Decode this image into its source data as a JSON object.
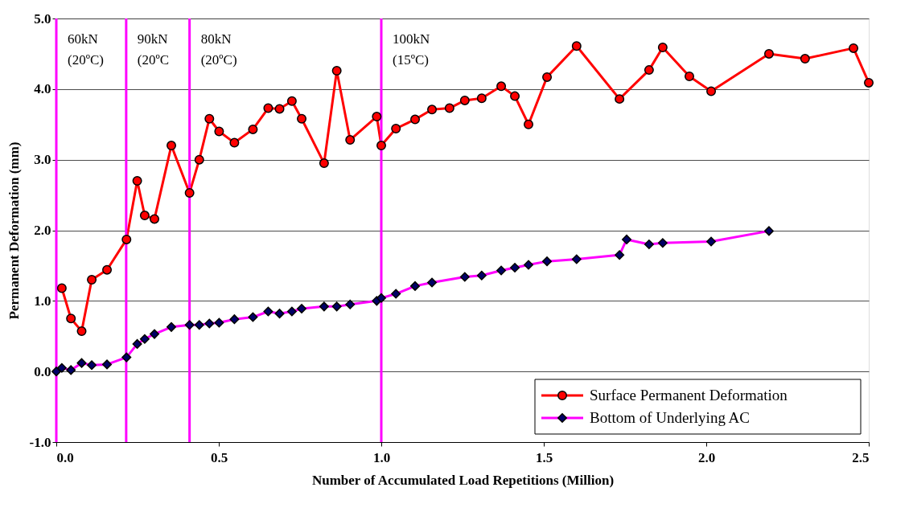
{
  "chart_data": {
    "type": "line",
    "xlabel": "Number of Accumulated Load Repetitions (Million)",
    "ylabel": "Permanent Deformation (mm)",
    "xlim": [
      0,
      2.5
    ],
    "xticks": [
      {
        "value": 0,
        "label": "0.0"
      },
      0.5,
      {
        "value": 1,
        "label": "1.0"
      },
      1.5,
      {
        "value": 2,
        "label": "2.0"
      },
      2.5
    ],
    "ylim": [
      -1,
      5
    ],
    "yticks": [
      {
        "value": -1,
        "label": "-1.0"
      },
      {
        "value": 0,
        "label": "0.0"
      },
      {
        "value": 1,
        "label": "1.0"
      },
      {
        "value": 2,
        "label": "2.0"
      },
      {
        "value": 3,
        "label": "3.0"
      },
      {
        "value": 4,
        "label": "4.0"
      },
      {
        "value": 5,
        "label": "5.0"
      }
    ],
    "grid": "y",
    "legend": "bottom right",
    "ref_lines": [
      {
        "axis": "x",
        "value": 0,
        "label": "60kN\n(20ºC)",
        "color": "#ff00ff"
      },
      {
        "axis": "x",
        "value": 0.215,
        "label": "90kN\n(20ºC",
        "color": "#ff00ff"
      },
      {
        "axis": "x",
        "value": 0.41,
        "label": "80kN\n(20ºC)",
        "color": "#ff00ff"
      },
      {
        "axis": "x",
        "value": 1.0,
        "label": "100kN\n(15ºC)",
        "color": "#ff00ff"
      }
    ],
    "series": [
      {
        "name": "Surface Permanent Deformation",
        "color": "#ff0000",
        "marker": "circle",
        "x": [
          0.017,
          0.045,
          0.078,
          0.109,
          0.156,
          0.216,
          0.249,
          0.272,
          0.302,
          0.354,
          0.41,
          0.44,
          0.471,
          0.501,
          0.548,
          0.605,
          0.652,
          0.687,
          0.725,
          0.755,
          0.824,
          0.863,
          0.904,
          0.986,
          1.0,
          1.045,
          1.104,
          1.156,
          1.21,
          1.257,
          1.309,
          1.369,
          1.411,
          1.453,
          1.51,
          1.601,
          1.733,
          1.824,
          1.866,
          1.948,
          2.015,
          2.193,
          2.304,
          2.453,
          2.5
        ],
        "values": [
          1.18,
          0.75,
          0.57,
          1.3,
          1.44,
          1.87,
          2.7,
          2.21,
          2.16,
          3.2,
          2.53,
          3.0,
          3.58,
          3.4,
          3.24,
          3.43,
          3.73,
          3.72,
          3.83,
          3.58,
          2.95,
          4.26,
          3.28,
          3.61,
          3.2,
          3.44,
          3.57,
          3.71,
          3.73,
          3.84,
          3.87,
          4.04,
          3.9,
          3.5,
          4.17,
          4.61,
          3.86,
          4.27,
          4.59,
          4.18,
          3.97,
          4.5,
          4.43,
          4.58,
          4.09
        ]
      },
      {
        "name": "Bottom of Underlying AC",
        "color": "#ff00ff",
        "marker": "diamond",
        "colors": [
          "#000066",
          "#000066",
          "#000066",
          "#000066",
          "#000066",
          "#000066",
          "#000066",
          "#000066",
          "#000066",
          "#000066",
          "#000066",
          "#000066",
          "#000066",
          "#000066",
          "#000066",
          "#000066",
          "#000066",
          "#000066",
          "#000066",
          "#000066",
          "#000066",
          "#000066",
          "#000066",
          "#000066",
          "#000066",
          "#000066",
          "#000066",
          "#000066",
          "#000066",
          "#000066",
          "#000066",
          "#000066",
          "#000066",
          "#000066",
          "#000066",
          "#000066",
          "#000066",
          "#000066",
          "#000066",
          "#000066",
          "#000066",
          "#000066"
        ],
        "x": [
          0,
          0.017,
          0.045,
          0.078,
          0.109,
          0.156,
          0.216,
          0.249,
          0.272,
          0.302,
          0.354,
          0.41,
          0.44,
          0.471,
          0.501,
          0.548,
          0.605,
          0.652,
          0.687,
          0.725,
          0.755,
          0.824,
          0.863,
          0.904,
          0.986,
          1.0,
          1.045,
          1.104,
          1.156,
          1.257,
          1.309,
          1.369,
          1.411,
          1.453,
          1.51,
          1.601,
          1.733,
          1.755,
          1.824,
          1.866,
          2.015,
          2.193
        ],
        "values": [
          0.0,
          0.05,
          0.02,
          0.12,
          0.09,
          0.1,
          0.2,
          0.39,
          0.46,
          0.53,
          0.63,
          0.66,
          0.66,
          0.68,
          0.69,
          0.74,
          0.77,
          0.85,
          0.82,
          0.85,
          0.89,
          0.92,
          0.92,
          0.95,
          1.0,
          1.04,
          1.1,
          1.21,
          1.26,
          1.34,
          1.36,
          1.43,
          1.47,
          1.51,
          1.56,
          1.59,
          1.65,
          1.87,
          1.8,
          1.82,
          1.84,
          1.99
        ]
      }
    ]
  }
}
